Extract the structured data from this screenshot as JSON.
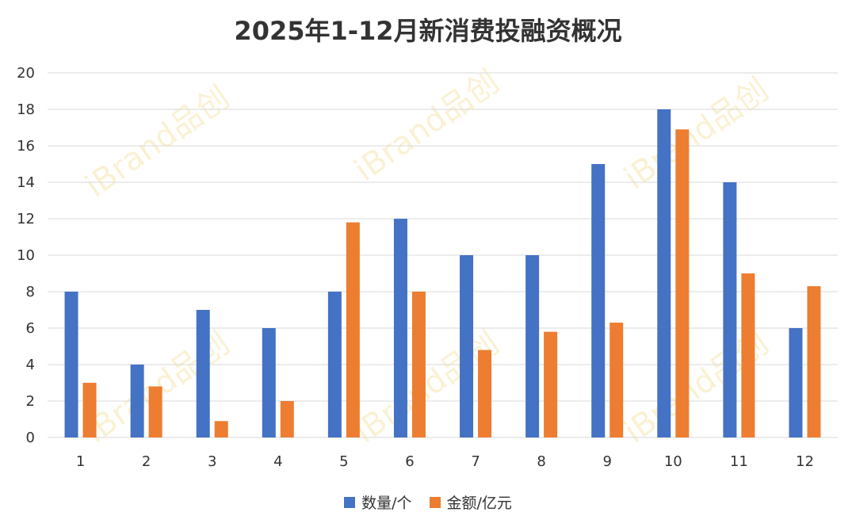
{
  "chart_data": {
    "type": "bar",
    "title": "2025年1-12月新消费投融资概况",
    "categories": [
      "1",
      "2",
      "3",
      "4",
      "5",
      "6",
      "7",
      "8",
      "9",
      "10",
      "11",
      "12"
    ],
    "series": [
      {
        "name": "数量/个",
        "color": "#4472c4",
        "values": [
          8,
          4,
          7,
          6,
          8,
          12,
          10,
          10,
          15,
          18,
          14,
          6
        ]
      },
      {
        "name": "金额/亿元",
        "color": "#ed7d31",
        "values": [
          3.0,
          2.8,
          0.9,
          2.0,
          11.8,
          8.0,
          4.8,
          5.8,
          6.3,
          16.9,
          9.0,
          8.3
        ]
      }
    ],
    "ylim": [
      0,
      20
    ],
    "yticks": [
      0,
      2,
      4,
      6,
      8,
      10,
      12,
      14,
      16,
      18,
      20
    ],
    "grid": true,
    "legend": "bottom"
  },
  "watermark": "iBrand品创"
}
